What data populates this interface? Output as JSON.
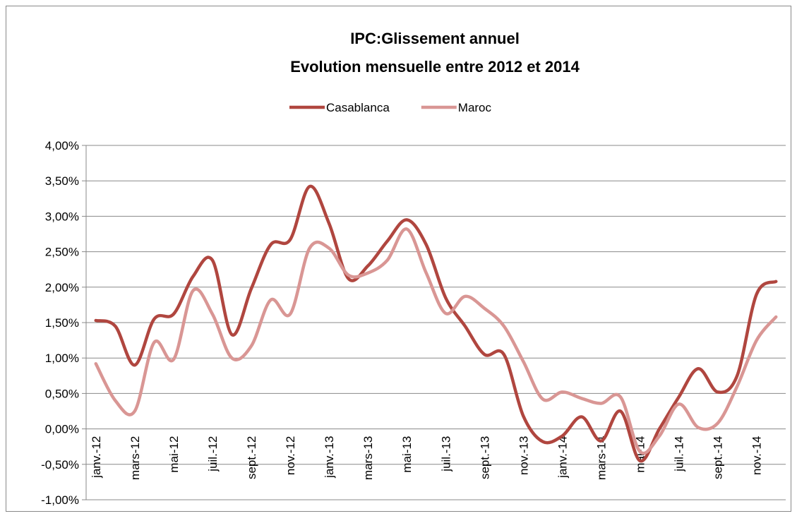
{
  "chart_data": {
    "type": "line",
    "title": "IPC:Glissement annuel",
    "subtitle": "Evolution mensuelle entre 2012 et 2014",
    "categories": [
      "janv.-12",
      null,
      "mars-12",
      null,
      "mai-12",
      null,
      "juil.-12",
      null,
      "sept.-12",
      null,
      "nov.-12",
      null,
      "janv.-13",
      null,
      "mars-13",
      null,
      "mai-13",
      null,
      "juil.-13",
      null,
      "sept.-13",
      null,
      "nov.-13",
      null,
      "janv.-14",
      null,
      "mars-14",
      null,
      "mai-14",
      null,
      "juil.-14",
      null,
      "sept.-14",
      null,
      "nov.-14",
      null
    ],
    "series": [
      {
        "name": "Casablanca",
        "color": "#b0463f",
        "values": [
          1.53,
          1.45,
          0.9,
          1.55,
          1.62,
          2.15,
          2.38,
          1.33,
          1.98,
          2.6,
          2.67,
          3.42,
          2.9,
          2.12,
          2.3,
          2.65,
          2.95,
          2.6,
          1.85,
          1.45,
          1.05,
          1.05,
          0.18,
          -0.18,
          -0.1,
          0.17,
          -0.17,
          0.25,
          -0.45,
          0.0,
          0.45,
          0.85,
          0.52,
          0.75,
          1.9,
          2.08
        ]
      },
      {
        "name": "Maroc",
        "color": "#d99694",
        "values": [
          0.92,
          0.4,
          0.25,
          1.22,
          0.98,
          1.95,
          1.62,
          1.0,
          1.17,
          1.82,
          1.62,
          2.55,
          2.55,
          2.17,
          2.2,
          2.38,
          2.82,
          2.2,
          1.63,
          1.87,
          1.7,
          1.45,
          0.95,
          0.42,
          0.52,
          0.43,
          0.36,
          0.45,
          -0.32,
          -0.1,
          0.35,
          0.02,
          0.08,
          0.6,
          1.25,
          1.58
        ]
      }
    ],
    "ylim": [
      -1,
      4
    ],
    "yticks": [
      {
        "value": -1,
        "label": "-1,00%"
      },
      {
        "value": -0.5,
        "label": "-0,50%"
      },
      {
        "value": 0,
        "label": "0,00%"
      },
      {
        "value": 0.5,
        "label": "0,50%"
      },
      {
        "value": 1,
        "label": "1,00%"
      },
      {
        "value": 1.5,
        "label": "1,50%"
      },
      {
        "value": 2,
        "label": "2,00%"
      },
      {
        "value": 2.5,
        "label": "2,50%"
      },
      {
        "value": 3,
        "label": "3,00%"
      },
      {
        "value": 3.5,
        "label": "3,50%"
      },
      {
        "value": 4,
        "label": "4,00%"
      }
    ],
    "grid": true,
    "legend": "top",
    "smooth": true
  }
}
